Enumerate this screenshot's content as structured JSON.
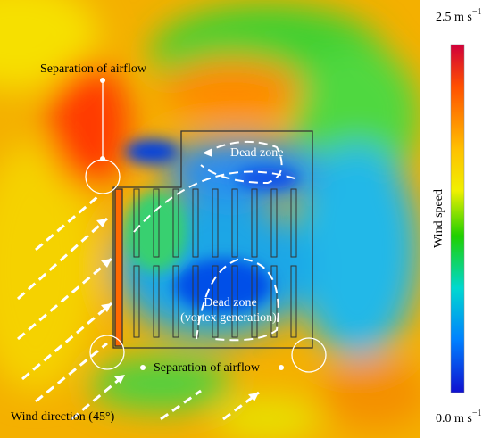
{
  "annotations": {
    "separation_top": "Separation of airflow",
    "dead_zone_top": "Dead zone",
    "dead_zone_bottom_line1": "Dead zone",
    "dead_zone_bottom_line2": "(vortex generation)",
    "separation_bottom": "Separation of airflow",
    "wind_direction": "Wind direction (45°)"
  },
  "colorbar": {
    "title": "Wind speed",
    "max_label": "2.5 m s",
    "min_label": "0.0 m s",
    "unit_exponent": "−1"
  }
}
